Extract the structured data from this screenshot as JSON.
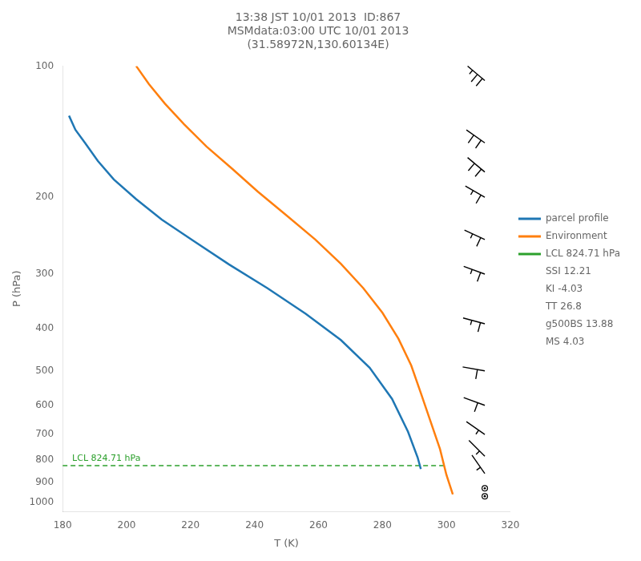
{
  "chart_data": {
    "type": "line",
    "title": [
      "13:38 JST 10/01 2013  ID:867",
      "MSMdata:03:00 UTC 10/01 2013",
      "(31.58972N,130.60134E)"
    ],
    "xlabel": "T (K)",
    "ylabel": "P (hPa)",
    "xlim": [
      180,
      320
    ],
    "ylim": [
      1050,
      100
    ],
    "xticks": [
      180,
      200,
      220,
      240,
      260,
      280,
      300,
      320
    ],
    "yticks": [
      100,
      200,
      300,
      400,
      500,
      600,
      700,
      800,
      900,
      1000
    ],
    "log": "y",
    "grid": false,
    "legend": "right",
    "series": [
      {
        "name": "parcel profile",
        "color": "#1f77b4",
        "line_style": "solid",
        "x": [
          182,
          184,
          187,
          191,
          196,
          203,
          211,
          221,
          232,
          244,
          256,
          267,
          276,
          283,
          288,
          291,
          292
        ],
        "values": [
          130,
          140,
          150,
          165,
          182,
          202,
          225,
          252,
          285,
          323,
          370,
          425,
          492,
          580,
          690,
          790,
          840
        ]
      },
      {
        "name": "Environment",
        "color": "#ff7f0e",
        "line_style": "solid",
        "x": [
          203,
          207,
          212,
          218,
          225,
          233,
          241,
          250,
          259,
          267,
          274,
          280,
          285,
          289,
          292,
          295,
          298,
          300,
          302
        ],
        "values": [
          100,
          110,
          122,
          136,
          153,
          172,
          194,
          220,
          250,
          284,
          323,
          368,
          422,
          486,
          562,
          652,
          756,
          866,
          960
        ]
      },
      {
        "name": "LCL 824.71 hPa",
        "color": "#2ca02c",
        "line_style": "dashed",
        "x": [
          180,
          300
        ],
        "values": [
          824.71,
          824.71
        ]
      }
    ],
    "annotations": [
      {
        "text": "LCL 824.71 hPa",
        "x": 183,
        "y": 824.71,
        "color": "#2ca02c"
      }
    ],
    "indices": [
      "SSI 12.21",
      "KI -4.03",
      "TT 26.8",
      "g500BS 13.88",
      "MS 4.03"
    ],
    "barb_x": 312,
    "wind_barbs": [
      {
        "P": 108,
        "spd": 25,
        "dir": 230
      },
      {
        "P": 150,
        "spd": 20,
        "dir": 235
      },
      {
        "P": 175,
        "spd": 20,
        "dir": 230
      },
      {
        "P": 200,
        "spd": 15,
        "dir": 240
      },
      {
        "P": 250,
        "spd": 15,
        "dir": 245
      },
      {
        "P": 300,
        "spd": 15,
        "dir": 250
      },
      {
        "P": 390,
        "spd": 15,
        "dir": 255
      },
      {
        "P": 500,
        "spd": 10,
        "dir": 260
      },
      {
        "P": 600,
        "spd": 10,
        "dir": 250
      },
      {
        "P": 700,
        "spd": 5,
        "dir": 235
      },
      {
        "P": 785,
        "spd": 5,
        "dir": 225
      },
      {
        "P": 860,
        "spd": 5,
        "dir": 215
      },
      {
        "P": 930,
        "spd": 0,
        "dir": 0
      },
      {
        "P": 970,
        "spd": 0,
        "dir": 0
      }
    ]
  }
}
